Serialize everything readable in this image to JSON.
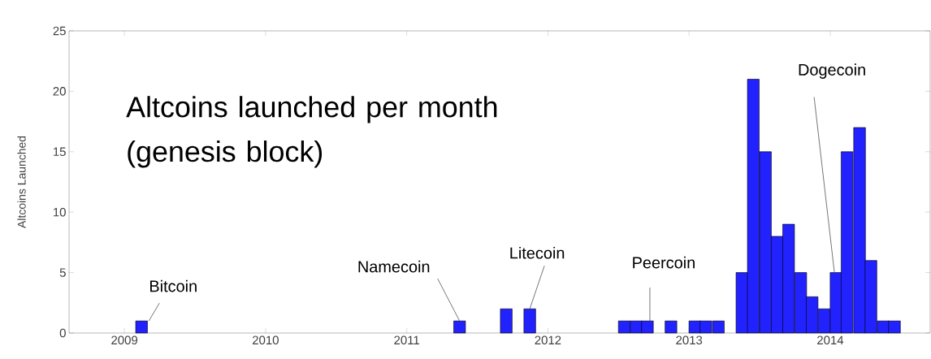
{
  "chart_data": {
    "type": "bar",
    "title": "Altcoins launched per month (genesis block)",
    "ylabel": "Altcoins Launched",
    "x": [
      "2009-02-15",
      "2011-05-16",
      "2011-09-15",
      "2011-11-15",
      "2012-07-16",
      "2012-08-16",
      "2012-09-15",
      "2012-11-15",
      "2013-01-16",
      "2013-02-14",
      "2013-03-16",
      "2013-05-16",
      "2013-06-15",
      "2013-07-16",
      "2013-08-16",
      "2013-09-15",
      "2013-10-16",
      "2013-11-15",
      "2013-12-16",
      "2014-01-16",
      "2014-02-14",
      "2014-03-16",
      "2014-04-15",
      "2014-05-16",
      "2014-06-15"
    ],
    "values": [
      1,
      1,
      2,
      2,
      1,
      1,
      1,
      1,
      1,
      1,
      1,
      5,
      21,
      15,
      8,
      9,
      5,
      3,
      2,
      5,
      15,
      17,
      6,
      1,
      1
    ],
    "color": "#2222ff",
    "xlim": [
      "2008-08-10",
      "2014-09-16"
    ],
    "xticks": [
      "2009",
      "2010",
      "2011",
      "2012",
      "2013",
      "2014"
    ],
    "ylim": [
      0,
      25
    ],
    "yticks": [
      0,
      5,
      10,
      15,
      20,
      25
    ],
    "annotations": [
      {
        "text": "Bitcoin",
        "x": "2009-02-15",
        "y": 1
      },
      {
        "text": "Namecoin",
        "x": "2011-05-16",
        "y": 1
      },
      {
        "text": "Litecoin",
        "x": "2011-11-15",
        "y": 2
      },
      {
        "text": "Peercoin",
        "x": "2012-09-15",
        "y": 1
      },
      {
        "text": "Dogecoin",
        "x": "2014-01-16",
        "y": 5
      }
    ]
  }
}
